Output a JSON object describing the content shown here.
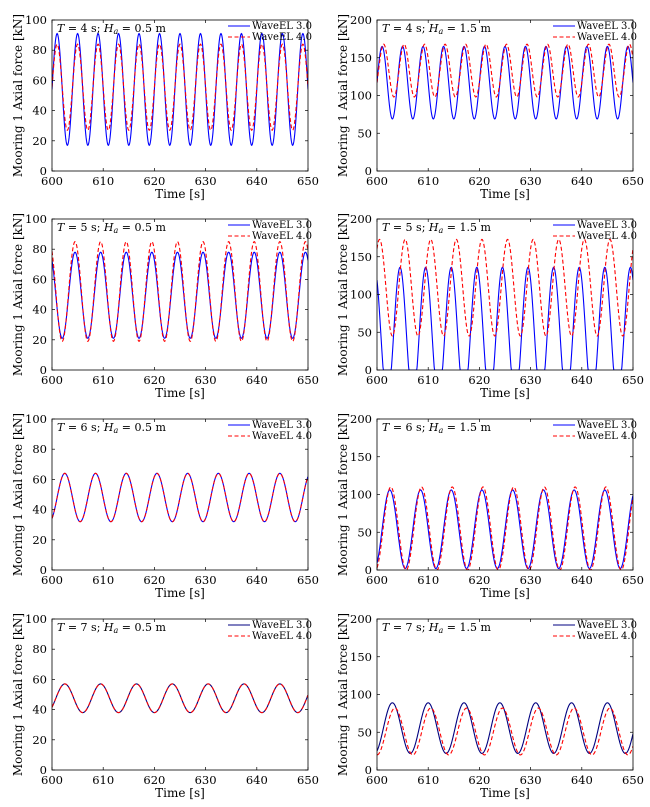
{
  "chart_data": [
    {
      "type": "line",
      "annotation": "T = 4 s; Ha = 0.5 m",
      "ann_T": "4",
      "ann_H": "0.5",
      "xlabel": "Time [s]",
      "ylabel": "Mooring 1 Axial force [kN]",
      "xlim": [
        600,
        650
      ],
      "ylim": [
        0,
        100
      ],
      "xticks": [
        600,
        610,
        620,
        630,
        640,
        650
      ],
      "yticks": [
        0,
        20,
        40,
        60,
        80,
        100
      ],
      "legend_position": "top-right",
      "grid": false,
      "series": [
        {
          "name": "WaveEL 3.0",
          "color": "#0000ff",
          "dash": "solid",
          "period": 4.0,
          "phase": 601.0,
          "min": 17,
          "max": 91
        },
        {
          "name": "WaveEL 4.0",
          "color": "#ff0000",
          "dash": "dashed",
          "period": 4.0,
          "phase": 601.0,
          "min": 27,
          "max": 84
        }
      ]
    },
    {
      "type": "line",
      "annotation": "T = 4 s; Ha = 1.5 m",
      "ann_T": "4",
      "ann_H": "1.5",
      "xlabel": "Time [s]",
      "ylabel": "Mooring 1 Axial force [kN]",
      "xlim": [
        600,
        650
      ],
      "ylim": [
        0,
        200
      ],
      "xticks": [
        600,
        610,
        620,
        630,
        640,
        650
      ],
      "yticks": [
        0,
        50,
        100,
        150,
        200
      ],
      "legend_position": "top-right",
      "grid": false,
      "series": [
        {
          "name": "WaveEL 3.0",
          "color": "#0000ff",
          "dash": "solid",
          "period": 4.0,
          "phase": 601.0,
          "min": 69,
          "max": 165
        },
        {
          "name": "WaveEL 4.0",
          "color": "#ff0000",
          "dash": "dashed",
          "period": 4.0,
          "phase": 601.3,
          "min": 98,
          "max": 168
        }
      ]
    },
    {
      "type": "line",
      "annotation": "T = 5 s; Ha = 0.5 m",
      "ann_T": "5",
      "ann_H": "0.5",
      "xlabel": "Time [s]",
      "ylabel": "Mooring 1 Axial force [kN]",
      "xlim": [
        600,
        650
      ],
      "ylim": [
        0,
        100
      ],
      "xticks": [
        600,
        610,
        620,
        630,
        640,
        650
      ],
      "yticks": [
        0,
        20,
        40,
        60,
        80,
        100
      ],
      "legend_position": "top-right",
      "grid": false,
      "series": [
        {
          "name": "WaveEL 3.0",
          "color": "#0000ff",
          "dash": "solid",
          "period": 5.0,
          "phase": 604.5,
          "min": 21,
          "max": 78
        },
        {
          "name": "WaveEL 4.0",
          "color": "#ff0000",
          "dash": "dashed",
          "period": 5.0,
          "phase": 604.5,
          "min": 19,
          "max": 85
        }
      ]
    },
    {
      "type": "line",
      "annotation": "T = 5 s; Ha = 1.5 m",
      "ann_T": "5",
      "ann_H": "1.5",
      "xlabel": "Time [s]",
      "ylabel": "Mooring 1 Axial force [kN]",
      "xlim": [
        600,
        650
      ],
      "ylim": [
        0,
        200
      ],
      "xticks": [
        600,
        610,
        620,
        630,
        640,
        650
      ],
      "yticks": [
        0,
        50,
        100,
        150,
        200
      ],
      "legend_position": "top-right",
      "grid": false,
      "series": [
        {
          "name": "WaveEL 3.0",
          "color": "#0000ff",
          "dash": "solid",
          "period": 5.0,
          "phase": 604.5,
          "min": 0,
          "max": 136,
          "floor": -40
        },
        {
          "name": "WaveEL 4.0",
          "color": "#ff0000",
          "dash": "dashed",
          "period": 5.0,
          "phase": 605.5,
          "min": 45,
          "max": 173
        }
      ]
    },
    {
      "type": "line",
      "annotation": "T = 6 s; Ha = 0.5 m",
      "ann_T": "6",
      "ann_H": "0.5",
      "xlabel": "Time [s]",
      "ylabel": "Mooring 1 Axial force [kN]",
      "xlim": [
        600,
        650
      ],
      "ylim": [
        0,
        100
      ],
      "xticks": [
        600,
        610,
        620,
        630,
        640,
        650
      ],
      "yticks": [
        0,
        20,
        40,
        60,
        80,
        100
      ],
      "legend_position": "top-right",
      "grid": false,
      "series": [
        {
          "name": "WaveEL 3.0",
          "color": "#0000ff",
          "dash": "solid",
          "period": 6.0,
          "phase": 602.5,
          "min": 32,
          "max": 64
        },
        {
          "name": "WaveEL 4.0",
          "color": "#ff0000",
          "dash": "dashed",
          "period": 6.0,
          "phase": 602.5,
          "min": 32,
          "max": 64
        }
      ]
    },
    {
      "type": "line",
      "annotation": "T = 6 s; Ha = 1.5 m",
      "ann_T": "6",
      "ann_H": "1.5",
      "xlabel": "Time [s]",
      "ylabel": "Mooring 1 Axial force [kN]",
      "xlim": [
        600,
        650
      ],
      "ylim": [
        0,
        200
      ],
      "xticks": [
        600,
        610,
        620,
        630,
        640,
        650
      ],
      "yticks": [
        0,
        50,
        100,
        150,
        200
      ],
      "legend_position": "top-right",
      "grid": false,
      "series": [
        {
          "name": "WaveEL 3.0",
          "color": "#0000ff",
          "dash": "solid",
          "period": 6.0,
          "phase": 602.5,
          "min": 2,
          "max": 106
        },
        {
          "name": "WaveEL 4.0",
          "color": "#ff0000",
          "dash": "dashed",
          "period": 6.0,
          "phase": 602.7,
          "min": 0,
          "max": 110
        }
      ]
    },
    {
      "type": "line",
      "annotation": "T = 7 s; Ha = 0.5 m",
      "ann_T": "7",
      "ann_H": "0.5",
      "xlabel": "Time [s]",
      "ylabel": "Mooring 1 Axial force [kN]",
      "xlim": [
        600,
        650
      ],
      "ylim": [
        0,
        100
      ],
      "xticks": [
        600,
        610,
        620,
        630,
        640,
        650
      ],
      "yticks": [
        0,
        20,
        40,
        60,
        80,
        100
      ],
      "legend_position": "top-right",
      "grid": false,
      "series": [
        {
          "name": "WaveEL 3.0",
          "color": "#000080",
          "dash": "solid",
          "period": 7.0,
          "phase": 602.5,
          "min": 38,
          "max": 57
        },
        {
          "name": "WaveEL 4.0",
          "color": "#ff0000",
          "dash": "dashed",
          "period": 7.0,
          "phase": 602.5,
          "min": 38,
          "max": 57
        }
      ]
    },
    {
      "type": "line",
      "annotation": "T = 7 s; Ha = 1.5 m",
      "ann_T": "7",
      "ann_H": "1.5",
      "xlabel": "Time [s]",
      "ylabel": "Mooring 1 Axial force [kN]",
      "xlim": [
        600,
        650
      ],
      "ylim": [
        0,
        200
      ],
      "xticks": [
        600,
        610,
        620,
        630,
        640,
        650
      ],
      "yticks": [
        0,
        50,
        100,
        150,
        200
      ],
      "legend_position": "top-right",
      "grid": false,
      "series": [
        {
          "name": "WaveEL 3.0",
          "color": "#000080",
          "dash": "solid",
          "period": 7.0,
          "phase": 603.0,
          "min": 22,
          "max": 89
        },
        {
          "name": "WaveEL 4.0",
          "color": "#ff0000",
          "dash": "dashed",
          "period": 7.0,
          "phase": 603.5,
          "min": 20,
          "max": 82
        }
      ]
    }
  ]
}
